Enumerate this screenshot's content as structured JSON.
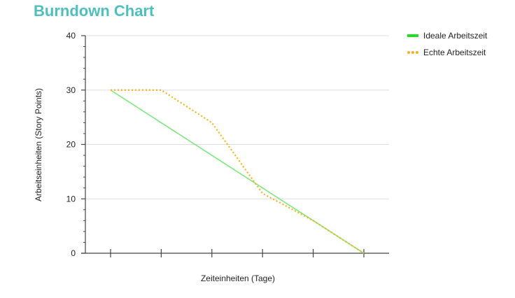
{
  "title": "Burndown Chart",
  "chart_data": {
    "type": "line",
    "xlabel": "Zeiteinheiten (Tage)",
    "ylabel": "Arbeitseinheiten (Story Points)",
    "ylim": [
      0,
      40
    ],
    "yticks": [
      0,
      10,
      20,
      30,
      40
    ],
    "x": [
      0,
      1,
      2,
      3,
      4,
      5
    ],
    "x_tick_labels": [],
    "grid": true,
    "legend_position": "top-right",
    "series": [
      {
        "name": "Ideale Arbeitszeit",
        "color": "#7de87d",
        "legend_color": "#22dd22",
        "style": "solid",
        "values": [
          30,
          24,
          18,
          12,
          6,
          0
        ]
      },
      {
        "name": "Echte Arbeitszeit",
        "color": "#f5b21a",
        "legend_color": "#f5b21a",
        "style": "dotted",
        "values": [
          30,
          30,
          24,
          11,
          6,
          0
        ]
      }
    ]
  }
}
